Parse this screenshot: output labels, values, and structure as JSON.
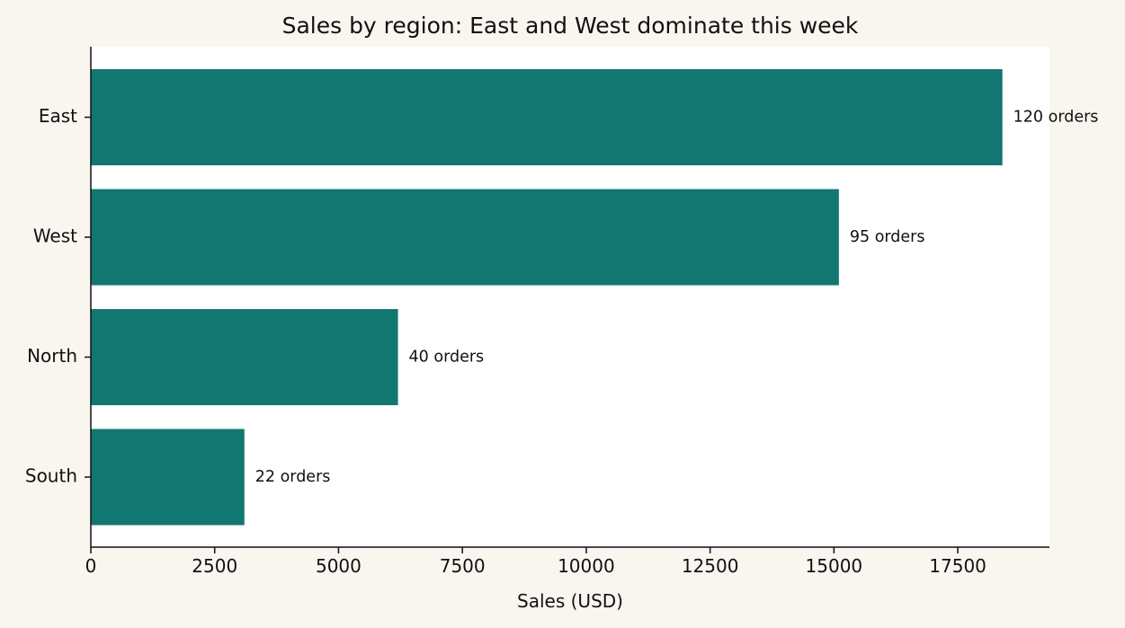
{
  "chart_data": {
    "type": "bar",
    "orientation": "horizontal",
    "title": "Sales by region: East and West dominate this week",
    "xlabel": "Sales (USD)",
    "ylabel": "",
    "categories": [
      "East",
      "West",
      "North",
      "South"
    ],
    "values": [
      18400,
      15100,
      6200,
      3100
    ],
    "data_labels": [
      "120 orders",
      "95 orders",
      "40 orders",
      "22 orders"
    ],
    "xlim": [
      0,
      19350
    ],
    "xticks": [
      0,
      2500,
      5000,
      7500,
      10000,
      12500,
      15000,
      17500
    ],
    "grid": false,
    "legend": "none"
  },
  "colors": {
    "bar": "#117770",
    "plot_background": "#ffffff",
    "figure_background": "#f9f6f0",
    "text": "#111111"
  }
}
